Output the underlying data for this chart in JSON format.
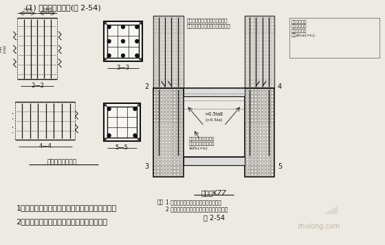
{
  "title": "(1) 框支柱锤筋构造(图 2-54)",
  "bg_color": "#ede9e3",
  "text_color": "#111111",
  "bottom_text1": "1）框支柱的柱底纵筋的连接构造同抗震框架柱。",
  "bottom_text2": "2）柱纵向锤筋的连接宜采用机械连接接头。",
  "fig_label": "图 2-54",
  "label_22": "2—2",
  "label_33": "3—3",
  "label_44": "4—4",
  "label_55": "5—5",
  "vertical_label": "纵向锤筋弯折要求",
  "kzz_label": "框支柱KZZ",
  "note_prefix": "注：",
  "note1": "1 柱底纵筋的连接构造同抗震框架柱。",
  "note2": "2 柱纵向锤筋的连接宜采用机械连接接头。",
  "ann_top1_line1": "框支柱部分纵筋延伸到上层剪力",
  "ann_top1_line2": "力墙楼板顶，规则为：能通则通。",
  "ann_right1": "自框支柱边缘\n算起，弯错入\n框支梁或楼层\n板内≥lₐᴇ(>lₐ).",
  "ann_mid_left": "自层支柱边缘算起，弯\n插入框支架或楼层板内\n≥2lₐ(>lₐ)",
  "watermark": "zhulong.com"
}
